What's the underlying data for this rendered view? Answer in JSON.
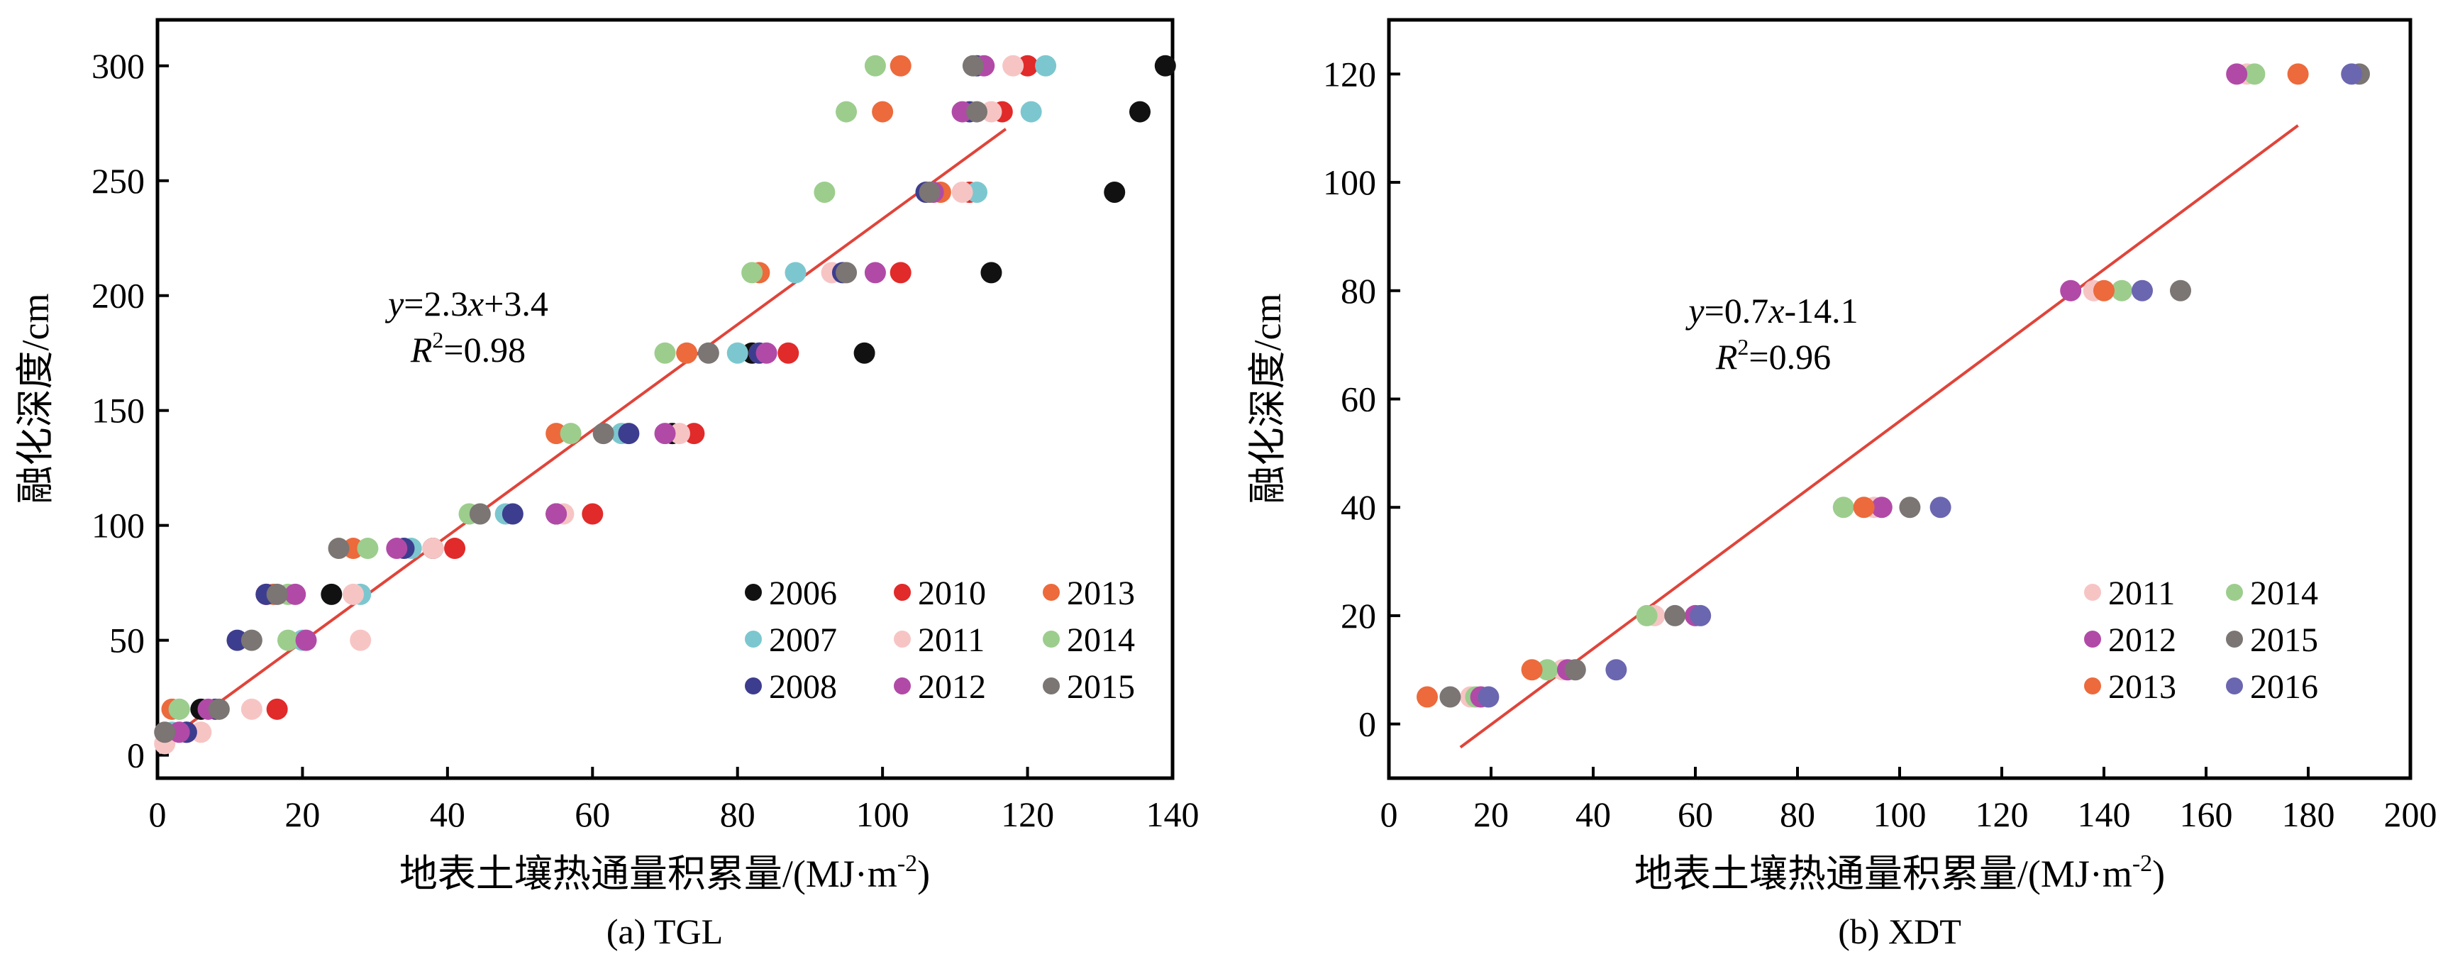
{
  "colors": {
    "2006": "#111111",
    "2007": "#7cc7cf",
    "2008": "#3d3d8f",
    "2010": "#e12a2a",
    "2011": "#f7c4c4",
    "2012": "#b14aa7",
    "2013": "#ec6a3c",
    "2014": "#9ccd8d",
    "2015": "#7b7573",
    "2016": "#6b66b0",
    "fit_line": "#e0443a"
  },
  "chart_data": [
    {
      "type": "scatter",
      "caption": "(a) TGL",
      "xlabel": "地表土壤热通量积累量/(MJ·m",
      "xlabel_sup": "-2",
      "xlabel_close": ")",
      "ylabel": "融化深度/cm",
      "xlim": [
        0,
        140
      ],
      "ylim": [
        -10,
        320
      ],
      "xticks": [
        0,
        20,
        40,
        60,
        80,
        100,
        120,
        140
      ],
      "yticks": [
        0,
        50,
        100,
        150,
        200,
        250,
        300
      ],
      "equation": {
        "y_label": "y",
        "eq_rest": "=2.3",
        "x_label": "x",
        "eq_tail": "+3.4",
        "r_label": "R",
        "r_sup": "2",
        "r_tail": "=0.98"
      },
      "fit": {
        "slope": 2.3,
        "intercept": 3.4,
        "x_range": [
          2,
          117
        ]
      },
      "legend_position": "bottom-right",
      "legend_columns": 3,
      "series": [
        {
          "name": "2006",
          "color_key": "2006",
          "points": [
            [
              6,
              20
            ],
            [
              24,
              70
            ],
            [
              38,
              90
            ],
            [
              55,
              105
            ],
            [
              71,
              140
            ],
            [
              82,
              175
            ],
            [
              97.5,
              175
            ],
            [
              115,
              210
            ],
            [
              132,
              245
            ],
            [
              135.5,
              280
            ],
            [
              139,
              300
            ]
          ]
        },
        {
          "name": "2010",
          "color_key": "2010",
          "points": [
            [
              4,
              10
            ],
            [
              16.5,
              20
            ],
            [
              15,
              70
            ],
            [
              41,
              90
            ],
            [
              60,
              105
            ],
            [
              74,
              140
            ],
            [
              87,
              175
            ],
            [
              102.5,
              210
            ],
            [
              112,
              245
            ],
            [
              116.5,
              280
            ],
            [
              120,
              300
            ]
          ]
        },
        {
          "name": "2013",
          "color_key": "2013",
          "points": [
            [
              2,
              20
            ],
            [
              16,
              70
            ],
            [
              27,
              90
            ],
            [
              55,
              140
            ],
            [
              73,
              175
            ],
            [
              83,
              210
            ],
            [
              108,
              245
            ],
            [
              100,
              280
            ],
            [
              102.5,
              300
            ]
          ]
        },
        {
          "name": "2007",
          "color_key": "2007",
          "points": [
            [
              2,
              10
            ],
            [
              3,
              20
            ],
            [
              20,
              50
            ],
            [
              28,
              70
            ],
            [
              35,
              90
            ],
            [
              48,
              105
            ],
            [
              64,
              140
            ],
            [
              80,
              175
            ],
            [
              88,
              210
            ],
            [
              113,
              245
            ],
            [
              120.5,
              280
            ],
            [
              122.5,
              300
            ]
          ]
        },
        {
          "name": "2011",
          "color_key": "2011",
          "points": [
            [
              1,
              5
            ],
            [
              6,
              10
            ],
            [
              13,
              20
            ],
            [
              28,
              50
            ],
            [
              27,
              70
            ],
            [
              38,
              90
            ],
            [
              56,
              105
            ],
            [
              72,
              140
            ],
            [
              83,
              175
            ],
            [
              93,
              210
            ],
            [
              111,
              245
            ],
            [
              115,
              280
            ],
            [
              118,
              300
            ]
          ]
        },
        {
          "name": "2014",
          "color_key": "2014",
          "points": [
            [
              3,
              20
            ],
            [
              18,
              50
            ],
            [
              18,
              70
            ],
            [
              29,
              90
            ],
            [
              43,
              105
            ],
            [
              57,
              140
            ],
            [
              70,
              175
            ],
            [
              82,
              210
            ],
            [
              92,
              245
            ],
            [
              95,
              280
            ],
            [
              99,
              300
            ]
          ]
        },
        {
          "name": "2008",
          "color_key": "2008",
          "points": [
            [
              4,
              10
            ],
            [
              8,
              20
            ],
            [
              11,
              50
            ],
            [
              15,
              70
            ],
            [
              34,
              90
            ],
            [
              49,
              105
            ],
            [
              65,
              140
            ],
            [
              83,
              175
            ],
            [
              94.5,
              210
            ],
            [
              106,
              245
            ],
            [
              112,
              280
            ],
            [
              113,
              300
            ]
          ]
        },
        {
          "name": "2012",
          "color_key": "2012",
          "points": [
            [
              3,
              10
            ],
            [
              7,
              20
            ],
            [
              20.5,
              50
            ],
            [
              19,
              70
            ],
            [
              33,
              90
            ],
            [
              55,
              105
            ],
            [
              70,
              140
            ],
            [
              84,
              175
            ],
            [
              99,
              210
            ],
            [
              107,
              245
            ],
            [
              111,
              280
            ],
            [
              114,
              300
            ]
          ]
        },
        {
          "name": "2015",
          "color_key": "2015",
          "points": [
            [
              1,
              10
            ],
            [
              8.5,
              20
            ],
            [
              13,
              50
            ],
            [
              16.5,
              70
            ],
            [
              25,
              90
            ],
            [
              44.5,
              105
            ],
            [
              61.5,
              140
            ],
            [
              76,
              175
            ],
            [
              95,
              210
            ],
            [
              106.5,
              245
            ],
            [
              113,
              280
            ],
            [
              112.5,
              300
            ]
          ]
        }
      ]
    },
    {
      "type": "scatter",
      "caption": "(b) XDT",
      "xlabel": "地表土壤热通量积累量/(MJ·m",
      "xlabel_sup": "-2",
      "xlabel_close": ")",
      "ylabel": "融化深度/cm",
      "xlim": [
        0,
        200
      ],
      "ylim": [
        -10,
        130
      ],
      "xticks": [
        0,
        20,
        40,
        60,
        80,
        100,
        120,
        140,
        160,
        180,
        200
      ],
      "yticks": [
        0,
        20,
        40,
        60,
        80,
        100,
        120
      ],
      "equation": {
        "y_label": "y",
        "eq_rest": "=0.7",
        "x_label": "x",
        "eq_tail": "-14.1",
        "r_label": "R",
        "r_sup": "2",
        "r_tail": "=0.96"
      },
      "fit": {
        "slope": 0.7,
        "intercept": -14.1,
        "x_range": [
          14,
          178
        ]
      },
      "legend_position": "bottom-right",
      "legend_columns": 2,
      "series": [
        {
          "name": "2011",
          "color_key": "2011",
          "points": [
            [
              16,
              5
            ],
            [
              34,
              10
            ],
            [
              52,
              20
            ],
            [
              95,
              40
            ],
            [
              138,
              80
            ],
            [
              168,
              120
            ]
          ]
        },
        {
          "name": "2014",
          "color_key": "2014",
          "points": [
            [
              17,
              5
            ],
            [
              31,
              10
            ],
            [
              50.5,
              20
            ],
            [
              89,
              40
            ],
            [
              143.5,
              80
            ],
            [
              169.5,
              120
            ]
          ]
        },
        {
          "name": "2012",
          "color_key": "2012",
          "points": [
            [
              18,
              5
            ],
            [
              35,
              10
            ],
            [
              60,
              20
            ],
            [
              96.5,
              40
            ],
            [
              133.5,
              80
            ],
            [
              166,
              120
            ]
          ]
        },
        {
          "name": "2015",
          "color_key": "2015",
          "points": [
            [
              12,
              5
            ],
            [
              36.5,
              10
            ],
            [
              56,
              20
            ],
            [
              102,
              40
            ],
            [
              155,
              80
            ],
            [
              190,
              120
            ]
          ]
        },
        {
          "name": "2013",
          "color_key": "2013",
          "points": [
            [
              7.5,
              5
            ],
            [
              28,
              10
            ],
            [
              93,
              40
            ],
            [
              140,
              80
            ],
            [
              178,
              120
            ]
          ]
        },
        {
          "name": "2016",
          "color_key": "2016",
          "points": [
            [
              19.5,
              5
            ],
            [
              44.5,
              10
            ],
            [
              61,
              20
            ],
            [
              108,
              40
            ],
            [
              147.5,
              80
            ],
            [
              188.5,
              120
            ]
          ]
        }
      ]
    }
  ]
}
